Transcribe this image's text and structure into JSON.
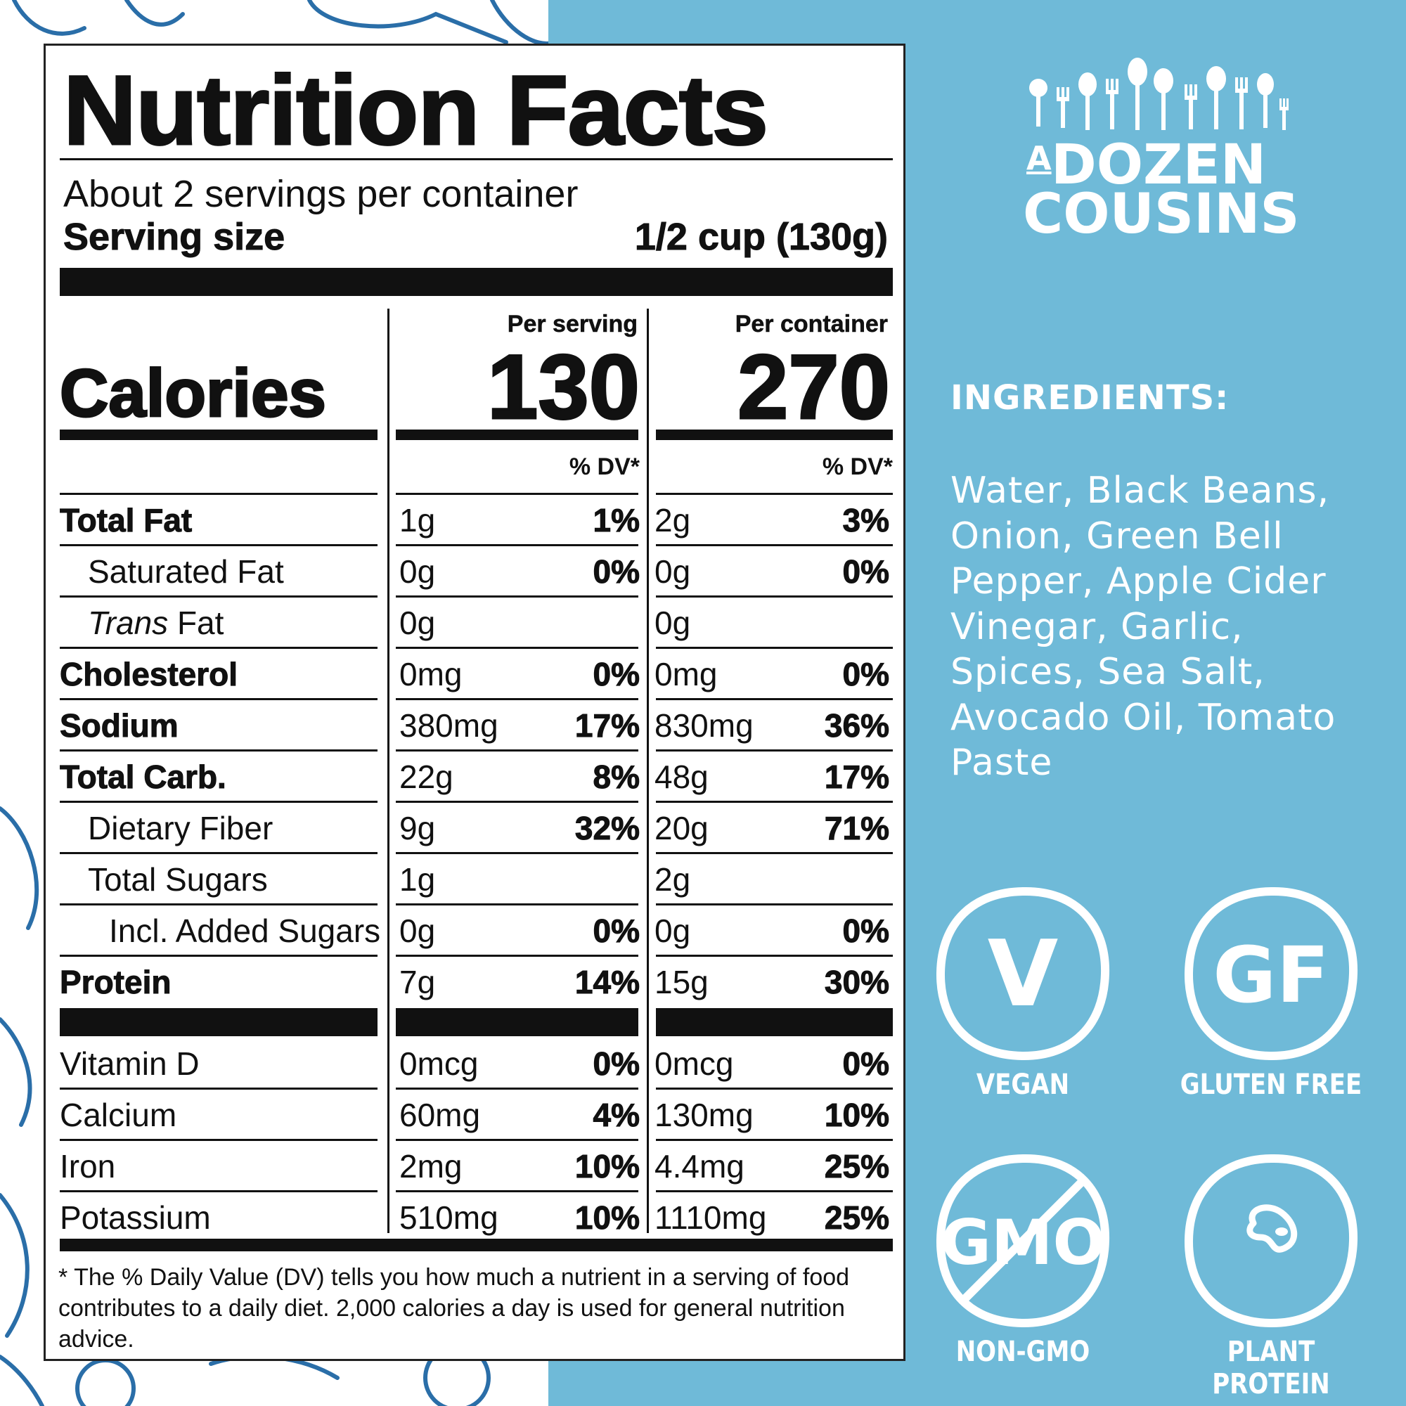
{
  "label": {
    "title": "Nutrition Facts",
    "servings": "About 2 servings per container",
    "serving_size_label": "Serving size",
    "serving_size_value": "1/2 cup (130g)",
    "calories_label": "Calories",
    "per_serving_label": "Per serving",
    "per_container_label": "Per container",
    "calories_serving": "130",
    "calories_container": "270",
    "dv_label": "% DV*",
    "rows": [
      {
        "name": "Total Fat",
        "serving_amount": "1g",
        "serving_dv": "1%",
        "container_amount": "2g",
        "container_dv": "3%"
      },
      {
        "name": "Saturated Fat",
        "serving_amount": "0g",
        "serving_dv": "0%",
        "container_amount": "0g",
        "container_dv": "0%"
      },
      {
        "name_italic": "Trans",
        "name_rest": " Fat",
        "serving_amount": "0g",
        "serving_dv": "",
        "container_amount": "0g",
        "container_dv": ""
      },
      {
        "name": "Cholesterol",
        "serving_amount": "0mg",
        "serving_dv": "0%",
        "container_amount": "0mg",
        "container_dv": "0%"
      },
      {
        "name": "Sodium",
        "serving_amount": "380mg",
        "serving_dv": "17%",
        "container_amount": "830mg",
        "container_dv": "36%"
      },
      {
        "name": "Total Carb.",
        "serving_amount": "22g",
        "serving_dv": "8%",
        "container_amount": "48g",
        "container_dv": "17%"
      },
      {
        "name": "Dietary Fiber",
        "serving_amount": "9g",
        "serving_dv": "32%",
        "container_amount": "20g",
        "container_dv": "71%"
      },
      {
        "name": "Total Sugars",
        "serving_amount": "1g",
        "serving_dv": "",
        "container_amount": "2g",
        "container_dv": ""
      },
      {
        "name": "Incl. Added Sugars",
        "serving_amount": "0g",
        "serving_dv": "0%",
        "container_amount": "0g",
        "container_dv": "0%"
      },
      {
        "name": "Protein",
        "serving_amount": "7g",
        "serving_dv": "14%",
        "container_amount": "15g",
        "container_dv": "30%"
      }
    ],
    "vitamins": [
      {
        "name": "Vitamin D",
        "serving_amount": "0mcg",
        "serving_dv": "0%",
        "container_amount": "0mcg",
        "container_dv": "0%"
      },
      {
        "name": "Calcium",
        "serving_amount": "60mg",
        "serving_dv": "4%",
        "container_amount": "130mg",
        "container_dv": "10%"
      },
      {
        "name": "Iron",
        "serving_amount": "2mg",
        "serving_dv": "10%",
        "container_amount": "4.4mg",
        "container_dv": "25%"
      },
      {
        "name": "Potassium",
        "serving_amount": "510mg",
        "serving_dv": "10%",
        "container_amount": "1110mg",
        "container_dv": "25%"
      }
    ],
    "footnote": "* The % Daily Value (DV) tells you how much a nutrient in a serving of food contributes to a daily diet. 2,000 calories a day is used for general nutrition advice."
  },
  "brand": {
    "line_a": "A",
    "line_1": "DOZEN",
    "line_2": "COUSINS"
  },
  "ingredients": {
    "title": "INGREDIENTS:",
    "text": "Water, Black Beans, Onion, Green Bell Pepper, Apple Cider Vinegar, Garlic, Spices, Sea Salt, Avocado Oil, Tomato Paste"
  },
  "badges": [
    {
      "symbol": "V",
      "label": "VEGAN",
      "icon": "vegan-icon"
    },
    {
      "symbol": "GF",
      "label": "GLUTEN FREE",
      "icon": "gluten-free-icon"
    },
    {
      "symbol": "GMO",
      "label": "NON-GMO",
      "icon": "non-gmo-icon"
    },
    {
      "symbol": "",
      "label": "PLANT PROTEIN",
      "icon": "bean-icon"
    }
  ],
  "colors": {
    "panel_blue": "#6fbad8",
    "doodle_blue": "#2a6ea8",
    "ink": "#111111"
  }
}
